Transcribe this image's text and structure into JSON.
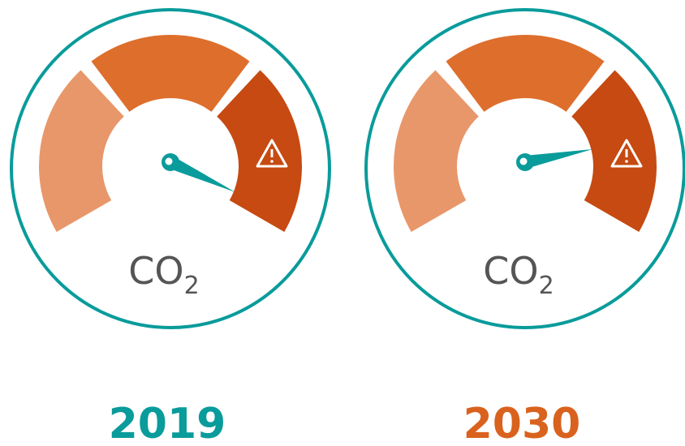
{
  "gauges": [
    {
      "label": "CO",
      "label_subscript": "2",
      "year": "2019"
    },
    {
      "label": "CO",
      "label_subscript": "2",
      "year": "2030"
    }
  ]
}
